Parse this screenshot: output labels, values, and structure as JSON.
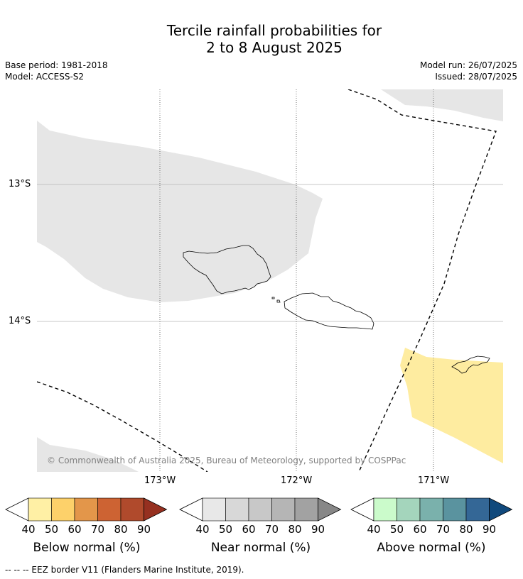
{
  "title_line1": "Tercile rainfall probabilities for",
  "title_line2": "2 to 8 August 2025",
  "base_period": "Base period: 1981-2018",
  "model": "Model: ACCESS-S2",
  "model_run": "Model run: 26/07/2025",
  "issued": "Issued: 28/07/2025",
  "copyright": "© Commonwealth of Australia 2025, Bureau of Meteorology, supported by COSPPac",
  "lat_labels": [
    "13°S",
    "14°S"
  ],
  "lon_labels": [
    "173°W",
    "172°W",
    "171°W"
  ],
  "colorbars": [
    {
      "label": "Below normal (%)",
      "ticks": [
        "40",
        "50",
        "60",
        "70",
        "80",
        "90"
      ],
      "colors": [
        "#fff0a5",
        "#fdd16a",
        "#e3964a",
        "#cd6333",
        "#b04a2c",
        "#963020"
      ]
    },
    {
      "label": "Near normal (%)",
      "ticks": [
        "40",
        "50",
        "60",
        "70",
        "80",
        "90"
      ],
      "colors": [
        "#e8e8e8",
        "#d8d8d8",
        "#c8c8c8",
        "#b5b5b5",
        "#a2a2a2",
        "#878787"
      ]
    },
    {
      "label": "Above normal (%)",
      "ticks": [
        "40",
        "50",
        "60",
        "70",
        "80",
        "90"
      ],
      "colors": [
        "#cbfbcb",
        "#a4d5bc",
        "#7ab1ac",
        "#5a939f",
        "#346796",
        "#10497c"
      ]
    }
  ],
  "footnote": "--  --  -- EEZ border V11 (Flanders Marine Institute, 2019)."
}
